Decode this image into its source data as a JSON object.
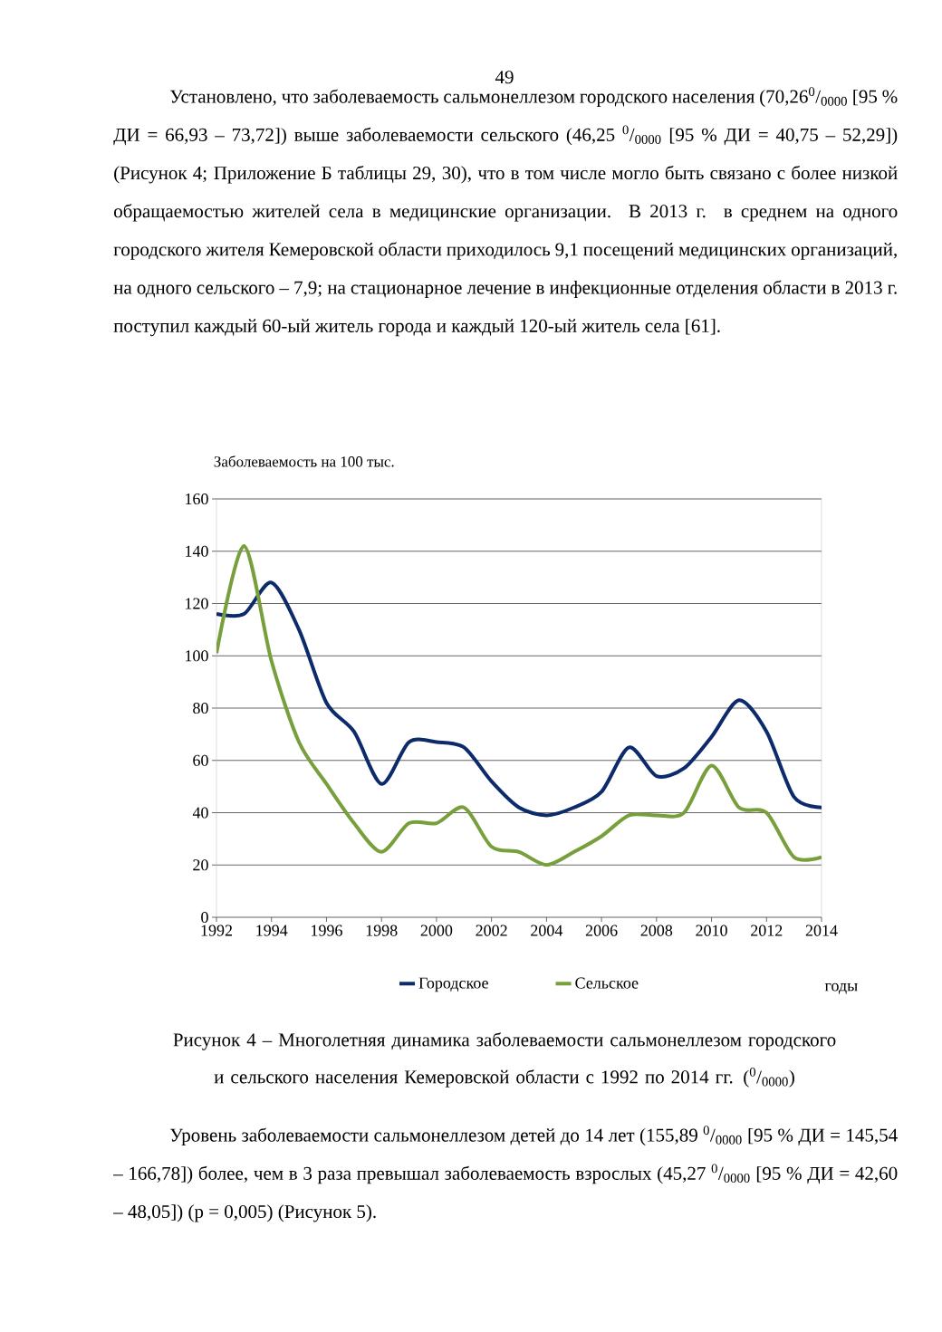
{
  "chart_data": {
    "type": "line",
    "ylabel": "Заболеваемость на 100 тыс.",
    "xlabel": "годы",
    "x": [
      1992,
      1993,
      1994,
      1995,
      1996,
      1997,
      1998,
      1999,
      2000,
      2001,
      2002,
      2003,
      2004,
      2005,
      2006,
      2007,
      2008,
      2009,
      2010,
      2011,
      2012,
      2013,
      2014
    ],
    "series": [
      {
        "name": "Городское",
        "color": "#0d2a6b",
        "values": [
          116,
          116,
          128,
          110,
          82,
          71,
          51,
          67,
          67,
          65,
          52,
          42,
          39,
          42,
          48,
          65,
          54,
          57,
          69,
          83,
          71,
          46,
          42
        ]
      },
      {
        "name": "Сельское",
        "color": "#77a03c",
        "values": [
          101,
          142,
          98,
          67,
          51,
          36,
          25,
          36,
          36,
          42,
          27,
          25,
          20,
          25,
          31,
          39,
          39,
          40,
          58,
          42,
          40,
          23,
          23
        ]
      }
    ],
    "xlim": [
      1992,
      2014
    ],
    "xticks": [
      1992,
      1994,
      1996,
      1998,
      2000,
      2002,
      2004,
      2006,
      2008,
      2010,
      2012,
      2014
    ],
    "ylim": [
      0,
      160
    ],
    "yticks": [
      0,
      20,
      40,
      60,
      80,
      100,
      120,
      140,
      160
    ],
    "grid": "y",
    "legend": "bottom",
    "line_style": "solid",
    "annotations": [
      "49",
      "Установлено, что заболеваемость сальмонеллезом городского населения (70,26$^{0}$/$_{0000}$ [95 % ДИ = 66,93 – 73,72]) выше заболеваемости сельского (46,25 $^{0}$/$_{0000}$ [95 % ДИ = 40,75 – 52,29]) (Рисунок 4; Приложение Б таблицы 29, 30), что в том числе могло быть связано с более низкой обращаемостью жителей села в медицинские организации. В 2013 г. в среднем на одного городского жителя Кемеровской области приходилось 9,1 посещений медицинских организаций, на одного сельского – 7,9; на стационарное лечение в инфекционные отделения области в 2013 г. поступил каждый 60-ый житель города и каждый 120-ый житель села [61].",
      "Рисунок 4 – Многолетняя динамика заболеваемости сальмонеллезом городского и сельского населения Кемеровской области с 1992 по 2014 гг. ($^{0}$/$_{0000}$)",
      "Уровень заболеваемости сальмонеллезом детей до 14 лет (155,89 $^{0}$/$_{0000}$ [95 % ДИ = 145,54 – 166,78]) более, чем в 3 раза превышал заболеваемость взрослых (45,27 $^{0}$/$_{0000}$ [95 % ДИ = 42,60 – 48,05]) (p = 0,005) (Рисунок 5)."
    ]
  }
}
